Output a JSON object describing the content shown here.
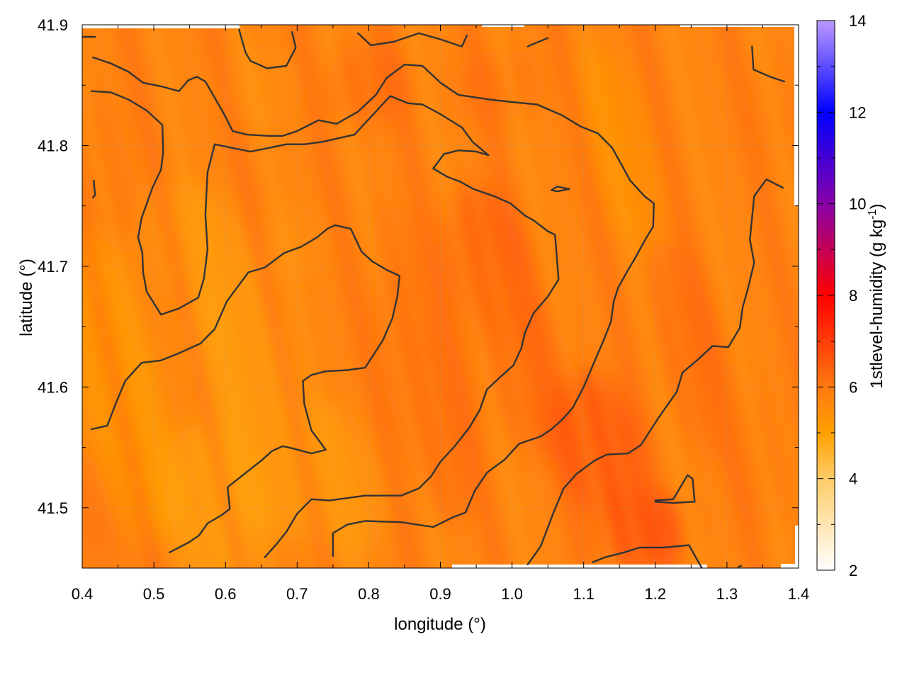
{
  "chart_data": {
    "type": "heatmap",
    "xlabel": "longitude (°)",
    "ylabel": "latitude (°)",
    "colorbar_label": "1stlevel-humidity (g kg",
    "colorbar_label_exp": "-1",
    "colorbar_label_close": ")",
    "xlim": [
      0.4,
      1.4
    ],
    "ylim": [
      41.45,
      41.9
    ],
    "x_ticks": [
      "0.4",
      "0.5",
      "0.6",
      "0.7",
      "0.8",
      "0.9",
      "1.0",
      "1.1",
      "1.2",
      "1.3",
      "1.4"
    ],
    "y_ticks": [
      "41.5",
      "41.6",
      "41.7",
      "41.8",
      "41.9"
    ],
    "colorbar_range": [
      2,
      14
    ],
    "colorbar_ticks": [
      "2",
      "4",
      "6",
      "8",
      "10",
      "12",
      "14"
    ],
    "colormap": [
      {
        "value": 2,
        "color": "#ffffff"
      },
      {
        "value": 4,
        "color": "#ffcc66"
      },
      {
        "value": 5,
        "color": "#ffa000"
      },
      {
        "value": 6,
        "color": "#ff7a10"
      },
      {
        "value": 8,
        "color": "#ff0000"
      },
      {
        "value": 10,
        "color": "#8800aa"
      },
      {
        "value": 12,
        "color": "#0000ff"
      },
      {
        "value": 14,
        "color": "#bb99ff"
      }
    ],
    "field_range_estimate": [
      5.4,
      7.2
    ],
    "grid": true,
    "contour_color": "#333333",
    "contours": [
      [
        [
          0.415,
          41.873
        ],
        [
          0.44,
          41.868
        ],
        [
          0.465,
          41.861
        ],
        [
          0.485,
          41.852
        ],
        [
          0.51,
          41.849
        ],
        [
          0.535,
          41.845
        ],
        [
          0.548,
          41.854
        ],
        [
          0.56,
          41.857
        ],
        [
          0.572,
          41.853
        ],
        [
          0.598,
          41.826
        ],
        [
          0.61,
          41.812
        ],
        [
          0.63,
          41.809
        ],
        [
          0.66,
          41.808
        ],
        [
          0.68,
          41.808
        ],
        [
          0.7,
          41.812
        ],
        [
          0.73,
          41.821
        ],
        [
          0.755,
          41.818
        ],
        [
          0.785,
          41.828
        ],
        [
          0.81,
          41.842
        ],
        [
          0.825,
          41.856
        ],
        [
          0.85,
          41.867
        ],
        [
          0.875,
          41.866
        ],
        [
          0.9,
          41.852
        ],
        [
          0.925,
          41.842
        ],
        [
          0.97,
          41.838
        ],
        [
          1.0,
          41.836
        ],
        [
          1.035,
          41.834
        ],
        [
          1.07,
          41.825
        ],
        [
          1.095,
          41.816
        ],
        [
          1.12,
          41.81
        ],
        [
          1.14,
          41.798
        ],
        [
          1.152,
          41.785
        ],
        [
          1.165,
          41.771
        ],
        [
          1.185,
          41.758
        ],
        [
          1.198,
          41.752
        ],
        [
          1.197,
          41.733
        ],
        [
          1.185,
          41.721
        ],
        [
          1.172,
          41.707
        ],
        [
          1.16,
          41.695
        ],
        [
          1.148,
          41.682
        ],
        [
          1.142,
          41.671
        ],
        [
          1.138,
          41.654
        ],
        [
          1.128,
          41.639
        ],
        [
          1.115,
          41.621
        ],
        [
          1.1,
          41.6
        ],
        [
          1.085,
          41.583
        ],
        [
          1.07,
          41.573
        ],
        [
          1.055,
          41.565
        ],
        [
          1.04,
          41.559
        ],
        [
          1.01,
          41.553
        ],
        [
          0.99,
          41.54
        ],
        [
          0.965,
          41.529
        ],
        [
          0.948,
          41.514
        ],
        [
          0.935,
          41.496
        ],
        [
          0.917,
          41.492
        ],
        [
          0.89,
          41.484
        ],
        [
          0.845,
          41.488
        ],
        [
          0.795,
          41.489
        ],
        [
          0.77,
          41.486
        ],
        [
          0.75,
          41.479
        ],
        [
          0.75,
          41.46
        ]
      ],
      [
        [
          0.413,
          41.845
        ],
        [
          0.44,
          41.844
        ],
        [
          0.465,
          41.838
        ],
        [
          0.49,
          41.829
        ],
        [
          0.512,
          41.817
        ],
        [
          0.513,
          41.794
        ],
        [
          0.51,
          41.78
        ],
        [
          0.498,
          41.765
        ],
        [
          0.483,
          41.74
        ],
        [
          0.478,
          41.724
        ],
        [
          0.484,
          41.711
        ],
        [
          0.485,
          41.695
        ],
        [
          0.49,
          41.679
        ],
        [
          0.51,
          41.66
        ],
        [
          0.535,
          41.665
        ],
        [
          0.562,
          41.674
        ],
        [
          0.57,
          41.69
        ],
        [
          0.575,
          41.714
        ],
        [
          0.572,
          41.743
        ],
        [
          0.575,
          41.778
        ],
        [
          0.585,
          41.801
        ],
        [
          0.61,
          41.798
        ],
        [
          0.635,
          41.795
        ],
        [
          0.66,
          41.798
        ],
        [
          0.685,
          41.801
        ],
        [
          0.71,
          41.801
        ],
        [
          0.735,
          41.803
        ],
        [
          0.78,
          41.809
        ],
        [
          0.805,
          41.825
        ],
        [
          0.83,
          41.841
        ],
        [
          0.855,
          41.835
        ],
        [
          0.875,
          41.834
        ],
        [
          0.9,
          41.826
        ],
        [
          0.93,
          41.815
        ],
        [
          0.945,
          41.803
        ],
        [
          0.967,
          41.792
        ],
        [
          0.95,
          41.795
        ],
        [
          0.925,
          41.796
        ],
        [
          0.905,
          41.793
        ],
        [
          0.89,
          41.781
        ],
        [
          0.91,
          41.774
        ],
        [
          0.928,
          41.77
        ],
        [
          0.946,
          41.764
        ],
        [
          0.975,
          41.758
        ],
        [
          0.998,
          41.752
        ],
        [
          1.018,
          41.742
        ],
        [
          1.03,
          41.738
        ],
        [
          1.05,
          41.729
        ],
        [
          1.06,
          41.726
        ],
        [
          1.065,
          41.689
        ],
        [
          1.05,
          41.675
        ],
        [
          1.03,
          41.661
        ],
        [
          1.018,
          41.645
        ],
        [
          1.013,
          41.632
        ],
        [
          1.002,
          41.618
        ],
        [
          0.985,
          41.609
        ],
        [
          0.965,
          41.598
        ],
        [
          0.955,
          41.581
        ],
        [
          0.94,
          41.566
        ],
        [
          0.92,
          41.551
        ],
        [
          0.9,
          41.538
        ],
        [
          0.887,
          41.526
        ],
        [
          0.87,
          41.516
        ],
        [
          0.845,
          41.51
        ],
        [
          0.795,
          41.51
        ],
        [
          0.745,
          41.506
        ],
        [
          0.72,
          41.507
        ],
        [
          0.7,
          41.495
        ],
        [
          0.685,
          41.48
        ],
        [
          0.67,
          41.469
        ],
        [
          0.655,
          41.459
        ]
      ],
      [
        [
          0.413,
          41.565
        ],
        [
          0.435,
          41.568
        ],
        [
          0.448,
          41.588
        ],
        [
          0.46,
          41.605
        ],
        [
          0.483,
          41.62
        ],
        [
          0.51,
          41.622
        ],
        [
          0.535,
          41.628
        ],
        [
          0.565,
          41.636
        ],
        [
          0.585,
          41.648
        ],
        [
          0.602,
          41.671
        ],
        [
          0.632,
          41.695
        ],
        [
          0.655,
          41.699
        ],
        [
          0.682,
          41.711
        ],
        [
          0.705,
          41.716
        ],
        [
          0.728,
          41.724
        ],
        [
          0.742,
          41.731
        ],
        [
          0.753,
          41.734
        ],
        [
          0.775,
          41.731
        ],
        [
          0.79,
          41.712
        ],
        [
          0.805,
          41.704
        ],
        [
          0.825,
          41.697
        ],
        [
          0.843,
          41.692
        ],
        [
          0.84,
          41.675
        ],
        [
          0.833,
          41.657
        ],
        [
          0.82,
          41.639
        ],
        [
          0.795,
          41.616
        ],
        [
          0.77,
          41.614
        ],
        [
          0.74,
          41.613
        ],
        [
          0.72,
          41.61
        ],
        [
          0.708,
          41.605
        ],
        [
          0.71,
          41.586
        ],
        [
          0.72,
          41.564
        ],
        [
          0.74,
          41.548
        ],
        [
          0.72,
          41.545
        ],
        [
          0.695,
          41.549
        ],
        [
          0.68,
          41.551
        ],
        [
          0.665,
          41.547
        ],
        [
          0.65,
          41.539
        ],
        [
          0.635,
          41.532
        ],
        [
          0.62,
          41.525
        ],
        [
          0.603,
          41.517
        ],
        [
          0.606,
          41.499
        ],
        [
          0.595,
          41.494
        ],
        [
          0.575,
          41.487
        ],
        [
          0.563,
          41.477
        ],
        [
          0.548,
          41.471
        ],
        [
          0.522,
          41.463
        ]
      ],
      [
        [
          0.418,
          41.89
        ],
        [
          0.4,
          41.89
        ]
      ],
      [
        [
          0.619,
          41.896
        ],
        [
          0.628,
          41.877
        ],
        [
          0.635,
          41.87
        ],
        [
          0.658,
          41.864
        ],
        [
          0.685,
          41.866
        ],
        [
          0.698,
          41.881
        ],
        [
          0.693,
          41.894
        ]
      ],
      [
        [
          0.785,
          41.893
        ],
        [
          0.803,
          41.883
        ],
        [
          0.835,
          41.886
        ],
        [
          0.87,
          41.893
        ],
        [
          0.9,
          41.888
        ],
        [
          0.93,
          41.882
        ],
        [
          0.937,
          41.891
        ]
      ],
      [
        [
          1.022,
          41.882
        ],
        [
          1.025,
          41.883
        ],
        [
          1.05,
          41.889
        ]
      ],
      [
        [
          1.335,
          41.882
        ],
        [
          1.337,
          41.863
        ],
        [
          1.36,
          41.857
        ],
        [
          1.38,
          41.853
        ]
      ],
      [
        [
          0.416,
          41.771
        ],
        [
          0.418,
          41.759
        ],
        [
          0.415,
          41.757
        ]
      ],
      [
        [
          1.055,
          41.763
        ],
        [
          1.063,
          41.766
        ],
        [
          1.08,
          41.764
        ],
        [
          1.063,
          41.762
        ],
        [
          1.055,
          41.763
        ]
      ],
      [
        [
          1.378,
          41.765
        ],
        [
          1.355,
          41.772
        ],
        [
          1.338,
          41.758
        ],
        [
          1.332,
          41.722
        ],
        [
          1.338,
          41.703
        ],
        [
          1.33,
          41.683
        ],
        [
          1.322,
          41.666
        ],
        [
          1.318,
          41.649
        ],
        [
          1.302,
          41.633
        ],
        [
          1.28,
          41.634
        ],
        [
          1.262,
          41.624
        ],
        [
          1.238,
          41.612
        ],
        [
          1.23,
          41.596
        ],
        [
          1.205,
          41.575
        ],
        [
          1.18,
          41.552
        ],
        [
          1.162,
          41.545
        ],
        [
          1.132,
          41.544
        ],
        [
          1.115,
          41.539
        ],
        [
          1.09,
          41.528
        ],
        [
          1.072,
          41.516
        ],
        [
          1.058,
          41.496
        ],
        [
          1.04,
          41.468
        ],
        [
          1.022,
          41.453
        ]
      ],
      [
        [
          1.2,
          41.506
        ],
        [
          1.225,
          41.507
        ],
        [
          1.245,
          41.527
        ],
        [
          1.252,
          41.524
        ],
        [
          1.255,
          41.505
        ],
        [
          1.225,
          41.504
        ],
        [
          1.2,
          41.505
        ]
      ],
      [
        [
          1.113,
          41.455
        ],
        [
          1.13,
          41.459
        ],
        [
          1.157,
          41.463
        ],
        [
          1.178,
          41.467
        ],
        [
          1.212,
          41.467
        ],
        [
          1.247,
          41.469
        ],
        [
          1.265,
          41.45
        ]
      ],
      [
        [
          1.316,
          41.451
        ],
        [
          1.32,
          41.452
        ]
      ]
    ]
  }
}
